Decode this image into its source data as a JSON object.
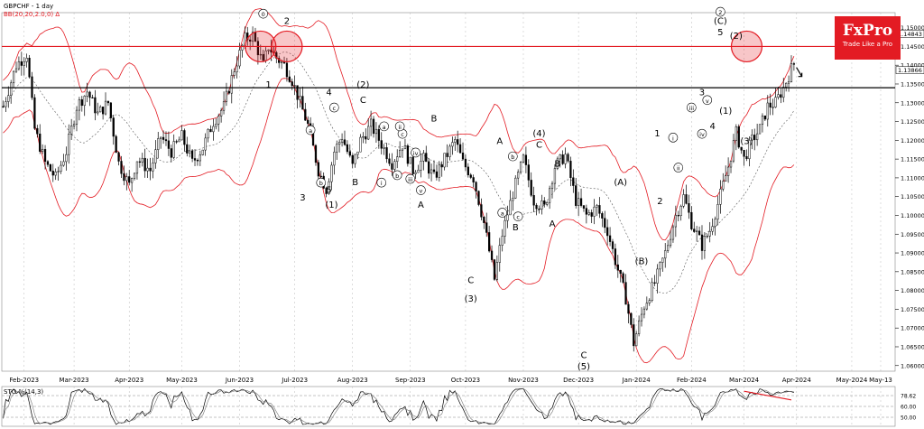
{
  "header": {
    "symbol_line": "GBPCHF - 1 day",
    "bb_line": "BB(20,20,2.0,0) ∆"
  },
  "logo": {
    "brand": "FxPro",
    "tagline": "Trade Like a Pro"
  },
  "colors": {
    "bb": "#e31b23",
    "ma": "#555555",
    "candle": "#000000",
    "level_red": "#e31b23",
    "level_black": "#000000"
  },
  "chart_data": {
    "type": "candlestick",
    "symbol": "GBPCHF",
    "timeframe": "1 day",
    "ylim": [
      1.0585,
      1.154
    ],
    "y_ticks": [
      1.06,
      1.065,
      1.07,
      1.075,
      1.08,
      1.085,
      1.09,
      1.095,
      1.1,
      1.105,
      1.11,
      1.115,
      1.12,
      1.125,
      1.13,
      1.135,
      1.14,
      1.145,
      1.15
    ],
    "y_tick_labels": [
      "1.06000",
      "1.06500",
      "1.07000",
      "1.07500",
      "1.08000",
      "1.08500",
      "1.09000",
      "1.09500",
      "1.10000",
      "1.10500",
      "1.11000",
      "1.11500",
      "1.12000",
      "1.12500",
      "1.13000",
      "1.13500",
      "1.14000",
      "1.14500",
      "1.15000"
    ],
    "price_labels": [
      {
        "value": 1.1484,
        "label": "1.14843"
      },
      {
        "value": 1.1387,
        "label": "1.13866"
      }
    ],
    "x_labels": [
      "Feb-2023",
      "Mar-2023",
      "Apr-2023",
      "May-2023",
      "Jun-2023",
      "Jul-2023",
      "Aug-2023",
      "Sep-2023",
      "Oct-2023",
      "Nov-2023",
      "Dec-2023",
      "Jan-2024",
      "Feb-2024",
      "Mar-2024",
      "Apr-2024",
      "May-2024",
      "May-13"
    ],
    "x_label_index": [
      8,
      27,
      48,
      68,
      90,
      111,
      133,
      155,
      176,
      198,
      219,
      241,
      262,
      282,
      302,
      323,
      334
    ],
    "bars_shown": 302,
    "total_slots": 340,
    "horizontal_levels": [
      {
        "value": 1.145,
        "color": "red"
      },
      {
        "value": 1.134,
        "color": "black"
      }
    ],
    "path": [
      [
        0,
        1.129
      ],
      [
        5,
        1.14
      ],
      [
        9,
        1.143
      ],
      [
        12,
        1.123
      ],
      [
        16,
        1.114
      ],
      [
        20,
        1.11
      ],
      [
        24,
        1.117
      ],
      [
        28,
        1.129
      ],
      [
        32,
        1.133
      ],
      [
        36,
        1.127
      ],
      [
        40,
        1.13
      ],
      [
        44,
        1.114
      ],
      [
        48,
        1.108
      ],
      [
        51,
        1.115
      ],
      [
        56,
        1.112
      ],
      [
        60,
        1.121
      ],
      [
        64,
        1.117
      ],
      [
        68,
        1.121
      ],
      [
        72,
        1.114
      ],
      [
        76,
        1.118
      ],
      [
        80,
        1.125
      ],
      [
        84,
        1.129
      ],
      [
        88,
        1.139
      ],
      [
        92,
        1.147
      ],
      [
        95,
        1.148
      ],
      [
        99,
        1.14
      ],
      [
        101,
        1.145
      ],
      [
        104,
        1.142
      ],
      [
        107,
        1.14
      ],
      [
        110,
        1.136
      ],
      [
        113,
        1.13
      ],
      [
        116,
        1.124
      ],
      [
        120,
        1.112
      ],
      [
        123,
        1.107
      ],
      [
        126,
        1.117
      ],
      [
        129,
        1.121
      ],
      [
        133,
        1.113
      ],
      [
        136,
        1.12
      ],
      [
        140,
        1.124
      ],
      [
        144,
        1.119
      ],
      [
        148,
        1.114
      ],
      [
        152,
        1.119
      ],
      [
        156,
        1.112
      ],
      [
        160,
        1.115
      ],
      [
        164,
        1.11
      ],
      [
        168,
        1.115
      ],
      [
        172,
        1.12
      ],
      [
        175,
        1.114
      ],
      [
        179,
        1.11
      ],
      [
        183,
        1.098
      ],
      [
        187,
        1.083
      ],
      [
        190,
        1.095
      ],
      [
        194,
        1.106
      ],
      [
        198,
        1.115
      ],
      [
        202,
        1.104
      ],
      [
        206,
        1.102
      ],
      [
        210,
        1.113
      ],
      [
        214,
        1.116
      ],
      [
        218,
        1.104
      ],
      [
        222,
        1.1
      ],
      [
        226,
        1.102
      ],
      [
        230,
        1.096
      ],
      [
        233,
        1.088
      ],
      [
        237,
        1.078
      ],
      [
        240,
        1.066
      ],
      [
        244,
        1.076
      ],
      [
        248,
        1.082
      ],
      [
        252,
        1.09
      ],
      [
        256,
        1.1
      ],
      [
        259,
        1.105
      ],
      [
        262,
        1.098
      ],
      [
        266,
        1.092
      ],
      [
        269,
        1.096
      ],
      [
        272,
        1.103
      ],
      [
        276,
        1.113
      ],
      [
        279,
        1.122
      ],
      [
        282,
        1.115
      ],
      [
        285,
        1.12
      ],
      [
        288,
        1.123
      ],
      [
        291,
        1.129
      ],
      [
        294,
        1.13
      ],
      [
        297,
        1.134
      ],
      [
        300,
        1.139
      ],
      [
        303,
        1.143
      ],
      [
        306,
        1.146
      ],
      [
        309,
        1.143
      ],
      [
        312,
        1.14
      ],
      [
        315,
        1.139
      ]
    ],
    "wave_labels": [
      {
        "text": "1",
        "i": 101,
        "v": 1.134,
        "c": false
      },
      {
        "text": "2",
        "i": 108,
        "v": 1.151,
        "c": false
      },
      {
        "text": "3",
        "i": 114,
        "v": 1.104,
        "c": false
      },
      {
        "text": "a",
        "i": 117,
        "v": 1.122,
        "c": true
      },
      {
        "text": "b",
        "i": 121,
        "v": 1.108,
        "c": true
      },
      {
        "text": "c",
        "i": 126,
        "v": 1.128,
        "c": true
      },
      {
        "text": "4",
        "i": 124,
        "v": 1.132,
        "c": false
      },
      {
        "text": "5",
        "i": 124,
        "v": 1.106,
        "c": false
      },
      {
        "text": "(1)",
        "i": 125,
        "v": 1.102,
        "c": false
      },
      {
        "text": "B",
        "i": 134,
        "v": 1.108,
        "c": false
      },
      {
        "text": "(2)",
        "i": 137,
        "v": 1.134,
        "c": false
      },
      {
        "text": "C",
        "i": 137,
        "v": 1.13,
        "c": false
      },
      {
        "text": "a",
        "i": 145,
        "v": 1.123,
        "c": true
      },
      {
        "text": "c",
        "i": 152,
        "v": 1.121,
        "c": true
      },
      {
        "text": "ii",
        "i": 151,
        "v": 1.123,
        "c": true
      },
      {
        "text": "i",
        "i": 144,
        "v": 1.108,
        "c": true
      },
      {
        "text": "b",
        "i": 150,
        "v": 1.11,
        "c": true
      },
      {
        "text": "iii",
        "i": 155,
        "v": 1.109,
        "c": true
      },
      {
        "text": "iv",
        "i": 157,
        "v": 1.116,
        "c": true
      },
      {
        "text": "v",
        "i": 159,
        "v": 1.106,
        "c": true
      },
      {
        "text": "A",
        "i": 159,
        "v": 1.102,
        "c": false
      },
      {
        "text": "B",
        "i": 164,
        "v": 1.125,
        "c": false
      },
      {
        "text": "C",
        "i": 178,
        "v": 1.082,
        "c": false
      },
      {
        "text": "(3)",
        "i": 178,
        "v": 1.077,
        "c": false
      },
      {
        "text": "A",
        "i": 189,
        "v": 1.119,
        "c": false
      },
      {
        "text": "b",
        "i": 194,
        "v": 1.115,
        "c": true
      },
      {
        "text": "a",
        "i": 190,
        "v": 1.1,
        "c": true
      },
      {
        "text": "c",
        "i": 196,
        "v": 1.099,
        "c": true
      },
      {
        "text": "B",
        "i": 195,
        "v": 1.096,
        "c": false
      },
      {
        "text": "(4)",
        "i": 204,
        "v": 1.121,
        "c": false
      },
      {
        "text": "C",
        "i": 204,
        "v": 1.118,
        "c": false
      },
      {
        "text": "B",
        "i": 211,
        "v": 1.113,
        "c": false
      },
      {
        "text": "A",
        "i": 209,
        "v": 1.097,
        "c": false
      },
      {
        "text": "C",
        "i": 221,
        "v": 1.062,
        "c": false
      },
      {
        "text": "(5)",
        "i": 221,
        "v": 1.059,
        "c": false
      },
      {
        "text": "(A)",
        "i": 235,
        "v": 1.108,
        "c": false
      },
      {
        "text": "(B)",
        "i": 243,
        "v": 1.087,
        "c": false
      },
      {
        "text": "1",
        "i": 249,
        "v": 1.121,
        "c": false
      },
      {
        "text": "2",
        "i": 250,
        "v": 1.103,
        "c": false
      },
      {
        "text": "i",
        "i": 255,
        "v": 1.12,
        "c": true
      },
      {
        "text": "ii",
        "i": 257,
        "v": 1.112,
        "c": true
      },
      {
        "text": "iii",
        "i": 262,
        "v": 1.128,
        "c": true
      },
      {
        "text": "3",
        "i": 266,
        "v": 1.132,
        "c": false
      },
      {
        "text": "iv",
        "i": 266,
        "v": 1.121,
        "c": true
      },
      {
        "text": "4",
        "i": 270,
        "v": 1.123,
        "c": false
      },
      {
        "text": "v",
        "i": 268,
        "v": 1.13,
        "c": true
      },
      {
        "text": "(1)",
        "i": 275,
        "v": 1.127,
        "c": false
      },
      {
        "text": "5",
        "i": 273,
        "v": 1.148,
        "c": false
      },
      {
        "text": "(C)",
        "i": 273,
        "v": 1.151,
        "c": false
      },
      {
        "text": "2",
        "i": 273,
        "v": 1.1535,
        "c": true
      },
      {
        "text": "(2)",
        "i": 279,
        "v": 1.147,
        "c": false
      },
      {
        "text": "(3)",
        "i": 283,
        "v": 1.119,
        "c": false
      },
      {
        "text": "0",
        "i": 99,
        "v": 1.153,
        "c": true
      }
    ],
    "circles": [
      {
        "i": 98,
        "v": 1.145
      },
      {
        "i": 108,
        "v": 1.145
      },
      {
        "i": 283,
        "v": 1.145
      }
    ],
    "indicator": {
      "name": "STO",
      "label": "STO %(14,3)",
      "ylim": [
        0,
        100
      ],
      "levels": [
        80,
        50,
        20
      ],
      "level_labels": [
        "78.62",
        "60.00",
        "50.00"
      ]
    }
  }
}
